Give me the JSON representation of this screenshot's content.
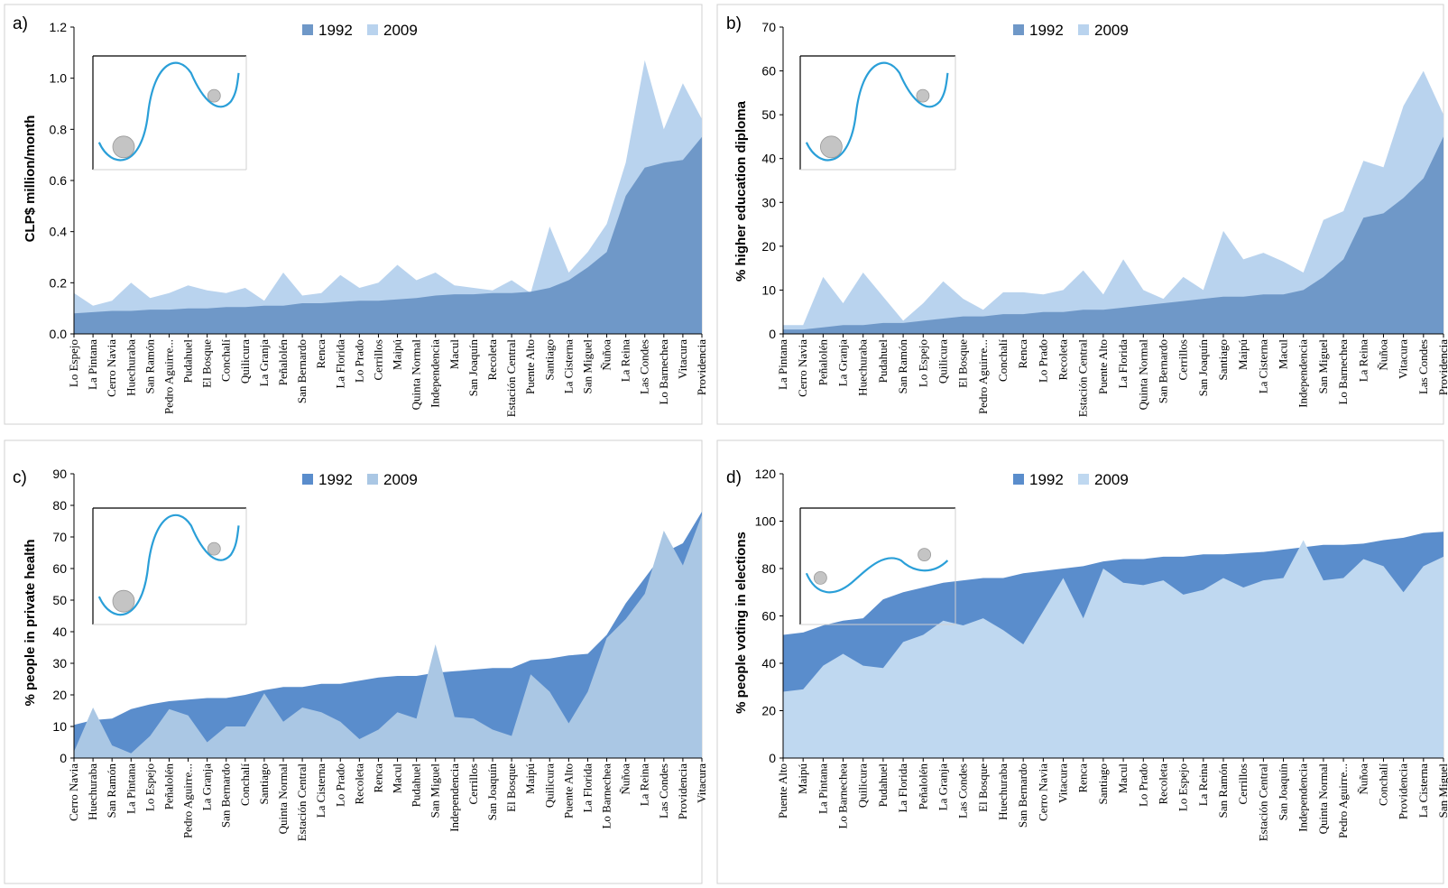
{
  "colors": {
    "a": {
      "c1992": "#6f98c8",
      "c2009": "#b9d3ee"
    },
    "b": {
      "c1992": "#6f98c8",
      "c2009": "#b9d3ee"
    },
    "c": {
      "c1992": "#5a8dcc",
      "c2009": "#aac7e4"
    },
    "d": {
      "c1992": "#5a8dcc",
      "c2009": "#bfd8f0"
    },
    "curve": "#2a9fd8",
    "ball": "#c4c4c4"
  },
  "chart_data": [
    {
      "panel_label": "a)",
      "type": "area",
      "ylabel": "CLP$ million/month",
      "ylim": [
        0,
        1.2
      ],
      "yticks": [
        "0.0",
        "0.2",
        "0.4",
        "0.6",
        "0.8",
        "1.0",
        "1.2"
      ],
      "legend": "top-center",
      "categories": [
        "Lo Espejo",
        "La Pintana",
        "Cerro Navia",
        "Huechuraba",
        "San Ramón",
        "Pedro Aguirre...",
        "Pudahuel",
        "El Bosque",
        "Conchalí",
        "Quilicura",
        "La Granja",
        "Peñalolén",
        "San Bernardo",
        "Renca",
        "La Florida",
        "Lo Prado",
        "Cerrillos",
        "Maipú",
        "Quinta Normal",
        "Independencia",
        "Macul",
        "San Joaquín",
        "Recoleta",
        "Estación Central",
        "Puente Alto",
        "Santiago",
        "La Cisterna",
        "San Miguel",
        "Ñuñoa",
        "La Reina",
        "Las Condes",
        "Lo Barnechea",
        "Vitacura",
        "Providencia"
      ],
      "series": [
        {
          "name": "1992",
          "values": [
            0.08,
            0.085,
            0.09,
            0.09,
            0.095,
            0.095,
            0.1,
            0.1,
            0.105,
            0.105,
            0.11,
            0.11,
            0.12,
            0.12,
            0.125,
            0.13,
            0.13,
            0.135,
            0.14,
            0.15,
            0.155,
            0.155,
            0.16,
            0.16,
            0.165,
            0.18,
            0.21,
            0.26,
            0.32,
            0.54,
            0.65,
            0.67,
            0.68,
            0.77
          ]
        },
        {
          "name": "2009",
          "values": [
            0.16,
            0.11,
            0.13,
            0.2,
            0.14,
            0.16,
            0.19,
            0.17,
            0.16,
            0.18,
            0.13,
            0.24,
            0.15,
            0.16,
            0.23,
            0.18,
            0.2,
            0.27,
            0.21,
            0.24,
            0.19,
            0.18,
            0.17,
            0.21,
            0.16,
            0.42,
            0.24,
            0.32,
            0.43,
            0.67,
            1.07,
            0.8,
            0.98,
            0.84
          ]
        }
      ]
    },
    {
      "panel_label": "b)",
      "type": "area",
      "ylabel": "% higher education diploma",
      "ylim": [
        0,
        70
      ],
      "yticks": [
        "0",
        "10",
        "20",
        "30",
        "40",
        "50",
        "60",
        "70"
      ],
      "legend": "top-center",
      "categories": [
        "La Pintana",
        "Cerro Navia",
        "Peñalolén",
        "La Granja",
        "Huechuraba",
        "Pudahuel",
        "San Ramón",
        "Lo Espejo",
        "Quilicura",
        "El Bosque",
        "Pedro Aguirre...",
        "Conchalí",
        "Renca",
        "Lo Prado",
        "Recoleta",
        "Estación Central",
        "Puente Alto",
        "La Florida",
        "Quinta Normal",
        "San Bernardo",
        "Cerrillos",
        "San Joaquín",
        "Santiago",
        "Maipú",
        "La Cisterna",
        "Macul",
        "Independencia",
        "San Miguel",
        "Lo Barnechea",
        "La Reina",
        "Ñuñoa",
        "Vitacura",
        "Las Condes",
        "Providencia"
      ],
      "series": [
        {
          "name": "1992",
          "values": [
            1,
            1,
            1.5,
            2,
            2,
            2.5,
            2.5,
            3,
            3.5,
            4,
            4,
            4.5,
            4.5,
            5,
            5,
            5.5,
            5.5,
            6,
            6.5,
            7,
            7.5,
            8,
            8.5,
            8.5,
            9,
            9,
            10,
            13,
            17,
            26.5,
            27.5,
            31,
            35.5,
            45
          ]
        },
        {
          "name": "2009",
          "values": [
            2,
            2,
            13,
            7,
            14,
            8.5,
            3,
            7,
            12,
            8,
            5.5,
            9.5,
            9.5,
            9,
            10,
            14.5,
            9,
            17,
            10,
            8,
            13,
            10,
            23.5,
            17,
            18.5,
            16.5,
            14,
            26,
            28,
            39.5,
            38,
            52,
            60,
            50
          ]
        }
      ]
    },
    {
      "panel_label": "c)",
      "type": "area",
      "ylabel": "% people in private health",
      "ylim": [
        0,
        90
      ],
      "yticks": [
        "0",
        "10",
        "20",
        "30",
        "40",
        "50",
        "60",
        "70",
        "80",
        "90"
      ],
      "legend": "top-center",
      "categories": [
        "Cerro Navia",
        "Huechuraba",
        "San Ramón",
        "La Pintana",
        "Lo Espejo",
        "Peñalolén",
        "Pedro Aguirre...",
        "La Granja",
        "San Bernardo",
        "Conchalí",
        "Santiago",
        "Quinta Normal",
        "Estación Central",
        "La Cisterna",
        "Lo Prado",
        "Recoleta",
        "Renca",
        "Macul",
        "Pudahuel",
        "San Miguel",
        "Independencia",
        "Cerrillos",
        "San Joaquín",
        "El Bosque",
        "Maipú",
        "Quilicura",
        "Puente Alto",
        "La Florida",
        "Lo Barnechea",
        "Ñuñoa",
        "La Reina",
        "Las Condes",
        "Providencia",
        "Vitacura"
      ],
      "series": [
        {
          "name": "1992",
          "values": [
            10.5,
            12,
            12.5,
            15.5,
            17,
            18,
            18.5,
            19,
            19,
            20,
            21.5,
            22.5,
            22.5,
            23.5,
            23.5,
            24.5,
            25.5,
            26,
            26,
            27,
            27.5,
            28,
            28.5,
            28.5,
            31,
            31.5,
            32.5,
            33,
            39,
            49,
            57,
            65,
            68,
            78
          ]
        },
        {
          "name": "2009",
          "values": [
            2,
            16,
            4,
            1.5,
            7,
            15.5,
            13.5,
            5,
            10,
            10,
            20.5,
            11.5,
            16,
            14.5,
            11.5,
            6,
            9,
            14.5,
            12.5,
            36,
            13,
            12.5,
            9,
            7,
            26.5,
            21,
            11,
            21,
            38,
            44,
            52,
            72,
            61,
            77
          ]
        }
      ]
    },
    {
      "panel_label": "d)",
      "type": "area",
      "ylabel": "% people voting in elections",
      "ylim": [
        0,
        120
      ],
      "yticks": [
        "0",
        "20",
        "40",
        "60",
        "80",
        "100",
        "120"
      ],
      "legend": "top-center",
      "categories": [
        "Puente Alto",
        "Maipú",
        "La Pintana",
        "Lo Barnechea",
        "Quilicura",
        "Pudahuel",
        "La Florida",
        "Peñalolén",
        "La Granja",
        "Las Condes",
        "El Bosque",
        "Huechuraba",
        "San Bernardo",
        "Cerro Navia",
        "Vitacura",
        "Renca",
        "Santiago",
        "Macul",
        "Lo Prado",
        "Recoleta",
        "Lo Espejo",
        "La Reina",
        "San Ramón",
        "Cerrillos",
        "Estación Central",
        "San Joaquín",
        "Independencia",
        "Quinta Normal",
        "Pedro Aguirre...",
        "Ñuñoa",
        "Conchalí",
        "Providencia",
        "La Cisterna",
        "San Miguel"
      ],
      "series": [
        {
          "name": "1992",
          "values": [
            52,
            53,
            56,
            58,
            59,
            67,
            70,
            72,
            74,
            75,
            76,
            76,
            78,
            79,
            80,
            81,
            83,
            84,
            84,
            85,
            85,
            86,
            86,
            86.5,
            87,
            88,
            89,
            90,
            90,
            90.5,
            92,
            93,
            95,
            95.5
          ]
        },
        {
          "name": "2009",
          "values": [
            28,
            29,
            39,
            44,
            39,
            38,
            49,
            52,
            58,
            56,
            59,
            54,
            48,
            62,
            76,
            59,
            80,
            74,
            73,
            75,
            69,
            71,
            76,
            72,
            75,
            76,
            92,
            75,
            76,
            84,
            81,
            70,
            81,
            85
          ]
        }
      ]
    }
  ]
}
